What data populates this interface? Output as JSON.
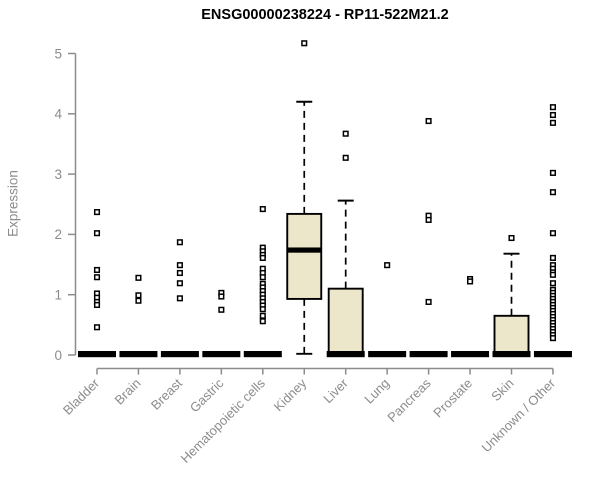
{
  "title": "ENSG00000238224 - RP11-522M21.2",
  "chart_data": {
    "type": "boxplot",
    "title": "ENSG00000238224 - RP11-522M21.2",
    "xlabel": "",
    "ylabel": "Expression",
    "ylim": [
      0,
      5
    ],
    "yticks": [
      0,
      1,
      2,
      3,
      4,
      5
    ],
    "grid": false,
    "legend": "none",
    "marker": "open-square",
    "categories": [
      "Bladder",
      "Brain",
      "Breast",
      "Gastric",
      "Hematopoietic cells",
      "Kidney",
      "Liver",
      "Lung",
      "Pancreas",
      "Prostate",
      "Skin",
      "Unknown / Other"
    ],
    "series": [
      {
        "category": "Bladder",
        "q1": 0,
        "median": 0,
        "q3": 0,
        "whisker_low": 0,
        "whisker_high": 0,
        "outliers": [
          2.37,
          2.02,
          1.41,
          1.29,
          1.02,
          0.95,
          0.88,
          0.83,
          0.46
        ]
      },
      {
        "category": "Brain",
        "q1": 0,
        "median": 0,
        "q3": 0,
        "whisker_low": 0,
        "whisker_high": 0,
        "outliers": [
          1.28,
          0.99,
          0.9
        ]
      },
      {
        "category": "Breast",
        "q1": 0,
        "median": 0,
        "q3": 0,
        "whisker_low": 0,
        "whisker_high": 0,
        "outliers": [
          1.87,
          1.49,
          1.36,
          1.19,
          0.94
        ]
      },
      {
        "category": "Gastric",
        "q1": 0,
        "median": 0,
        "q3": 0,
        "whisker_low": 0,
        "whisker_high": 0,
        "outliers": [
          1.03,
          0.97,
          0.75
        ]
      },
      {
        "category": "Hematopoietic cells",
        "q1": 0,
        "median": 0,
        "q3": 0,
        "whisker_low": 0,
        "whisker_high": 0,
        "outliers": [
          2.42,
          1.78,
          1.72,
          1.66,
          1.61,
          1.43,
          1.36,
          1.29,
          1.18,
          1.12,
          1.06,
          1.0,
          0.94,
          0.88,
          0.82,
          0.76,
          0.65,
          0.56
        ]
      },
      {
        "category": "Kidney",
        "q1": 0.93,
        "median": 1.74,
        "q3": 2.34,
        "whisker_low": 0.02,
        "whisker_high": 4.2,
        "outliers": [
          5.17
        ]
      },
      {
        "category": "Liver",
        "q1": 0,
        "median": 0.03,
        "q3": 1.1,
        "whisker_low": 0,
        "whisker_high": 2.56,
        "outliers": [
          3.67,
          3.27
        ]
      },
      {
        "category": "Lung",
        "q1": 0,
        "median": 0,
        "q3": 0,
        "whisker_low": 0,
        "whisker_high": 0,
        "outliers": [
          1.49
        ]
      },
      {
        "category": "Pancreas",
        "q1": 0,
        "median": 0,
        "q3": 0,
        "whisker_low": 0,
        "whisker_high": 0,
        "outliers": [
          3.88,
          2.31,
          2.24,
          0.88
        ]
      },
      {
        "category": "Prostate",
        "q1": 0,
        "median": 0,
        "q3": 0,
        "whisker_low": 0,
        "whisker_high": 0,
        "outliers": [
          1.26,
          1.22
        ]
      },
      {
        "category": "Skin",
        "q1": 0,
        "median": 0.03,
        "q3": 0.65,
        "whisker_low": 0,
        "whisker_high": 1.68,
        "outliers": [
          1.94
        ]
      },
      {
        "category": "Unknown / Other",
        "q1": 0,
        "median": 0,
        "q3": 0,
        "whisker_low": 0,
        "whisker_high": 0,
        "outliers": [
          4.11,
          3.98,
          3.85,
          3.02,
          2.7,
          2.02,
          1.61,
          1.49,
          1.43,
          1.37,
          1.33,
          1.19,
          1.08,
          1.03,
          0.98,
          0.93,
          0.88,
          0.83,
          0.78,
          0.73,
          0.68,
          0.63,
          0.58,
          0.53,
          0.48,
          0.43,
          0.38,
          0.33,
          0.28
        ]
      }
    ],
    "colors": {
      "box_fill": "#ECE6CB",
      "box_border": "#000000",
      "median": "#000000",
      "whisker": "#000000",
      "outlier_stroke": "#000000",
      "outlier_fill": "#ffffff",
      "axis": "#8C8C8C",
      "tick_label": "#8C8C8C",
      "title": "#000000"
    }
  }
}
